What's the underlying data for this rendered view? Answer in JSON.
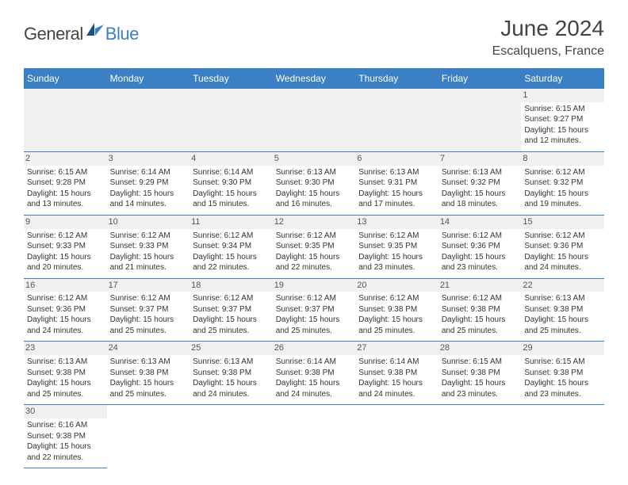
{
  "logo": {
    "text1": "General",
    "text2": "Blue"
  },
  "title": "June 2024",
  "location": "Escalquens, France",
  "days_of_week": [
    "Sunday",
    "Monday",
    "Tuesday",
    "Wednesday",
    "Thursday",
    "Friday",
    "Saturday"
  ],
  "colors": {
    "header_bg": "#3b7fc4",
    "header_text": "#ffffff",
    "body_text": "#333333",
    "day_num_bg": "#f0f0f0",
    "border": "#3b7fc4"
  },
  "weeks": [
    [
      null,
      null,
      null,
      null,
      null,
      null,
      {
        "n": "1",
        "sunrise": "Sunrise: 6:15 AM",
        "sunset": "Sunset: 9:27 PM",
        "daylight": "Daylight: 15 hours and 12 minutes."
      }
    ],
    [
      {
        "n": "2",
        "sunrise": "Sunrise: 6:15 AM",
        "sunset": "Sunset: 9:28 PM",
        "daylight": "Daylight: 15 hours and 13 minutes."
      },
      {
        "n": "3",
        "sunrise": "Sunrise: 6:14 AM",
        "sunset": "Sunset: 9:29 PM",
        "daylight": "Daylight: 15 hours and 14 minutes."
      },
      {
        "n": "4",
        "sunrise": "Sunrise: 6:14 AM",
        "sunset": "Sunset: 9:30 PM",
        "daylight": "Daylight: 15 hours and 15 minutes."
      },
      {
        "n": "5",
        "sunrise": "Sunrise: 6:13 AM",
        "sunset": "Sunset: 9:30 PM",
        "daylight": "Daylight: 15 hours and 16 minutes."
      },
      {
        "n": "6",
        "sunrise": "Sunrise: 6:13 AM",
        "sunset": "Sunset: 9:31 PM",
        "daylight": "Daylight: 15 hours and 17 minutes."
      },
      {
        "n": "7",
        "sunrise": "Sunrise: 6:13 AM",
        "sunset": "Sunset: 9:32 PM",
        "daylight": "Daylight: 15 hours and 18 minutes."
      },
      {
        "n": "8",
        "sunrise": "Sunrise: 6:12 AM",
        "sunset": "Sunset: 9:32 PM",
        "daylight": "Daylight: 15 hours and 19 minutes."
      }
    ],
    [
      {
        "n": "9",
        "sunrise": "Sunrise: 6:12 AM",
        "sunset": "Sunset: 9:33 PM",
        "daylight": "Daylight: 15 hours and 20 minutes."
      },
      {
        "n": "10",
        "sunrise": "Sunrise: 6:12 AM",
        "sunset": "Sunset: 9:33 PM",
        "daylight": "Daylight: 15 hours and 21 minutes."
      },
      {
        "n": "11",
        "sunrise": "Sunrise: 6:12 AM",
        "sunset": "Sunset: 9:34 PM",
        "daylight": "Daylight: 15 hours and 22 minutes."
      },
      {
        "n": "12",
        "sunrise": "Sunrise: 6:12 AM",
        "sunset": "Sunset: 9:35 PM",
        "daylight": "Daylight: 15 hours and 22 minutes."
      },
      {
        "n": "13",
        "sunrise": "Sunrise: 6:12 AM",
        "sunset": "Sunset: 9:35 PM",
        "daylight": "Daylight: 15 hours and 23 minutes."
      },
      {
        "n": "14",
        "sunrise": "Sunrise: 6:12 AM",
        "sunset": "Sunset: 9:36 PM",
        "daylight": "Daylight: 15 hours and 23 minutes."
      },
      {
        "n": "15",
        "sunrise": "Sunrise: 6:12 AM",
        "sunset": "Sunset: 9:36 PM",
        "daylight": "Daylight: 15 hours and 24 minutes."
      }
    ],
    [
      {
        "n": "16",
        "sunrise": "Sunrise: 6:12 AM",
        "sunset": "Sunset: 9:36 PM",
        "daylight": "Daylight: 15 hours and 24 minutes."
      },
      {
        "n": "17",
        "sunrise": "Sunrise: 6:12 AM",
        "sunset": "Sunset: 9:37 PM",
        "daylight": "Daylight: 15 hours and 25 minutes."
      },
      {
        "n": "18",
        "sunrise": "Sunrise: 6:12 AM",
        "sunset": "Sunset: 9:37 PM",
        "daylight": "Daylight: 15 hours and 25 minutes."
      },
      {
        "n": "19",
        "sunrise": "Sunrise: 6:12 AM",
        "sunset": "Sunset: 9:37 PM",
        "daylight": "Daylight: 15 hours and 25 minutes."
      },
      {
        "n": "20",
        "sunrise": "Sunrise: 6:12 AM",
        "sunset": "Sunset: 9:38 PM",
        "daylight": "Daylight: 15 hours and 25 minutes."
      },
      {
        "n": "21",
        "sunrise": "Sunrise: 6:12 AM",
        "sunset": "Sunset: 9:38 PM",
        "daylight": "Daylight: 15 hours and 25 minutes."
      },
      {
        "n": "22",
        "sunrise": "Sunrise: 6:13 AM",
        "sunset": "Sunset: 9:38 PM",
        "daylight": "Daylight: 15 hours and 25 minutes."
      }
    ],
    [
      {
        "n": "23",
        "sunrise": "Sunrise: 6:13 AM",
        "sunset": "Sunset: 9:38 PM",
        "daylight": "Daylight: 15 hours and 25 minutes."
      },
      {
        "n": "24",
        "sunrise": "Sunrise: 6:13 AM",
        "sunset": "Sunset: 9:38 PM",
        "daylight": "Daylight: 15 hours and 25 minutes."
      },
      {
        "n": "25",
        "sunrise": "Sunrise: 6:13 AM",
        "sunset": "Sunset: 9:38 PM",
        "daylight": "Daylight: 15 hours and 24 minutes."
      },
      {
        "n": "26",
        "sunrise": "Sunrise: 6:14 AM",
        "sunset": "Sunset: 9:38 PM",
        "daylight": "Daylight: 15 hours and 24 minutes."
      },
      {
        "n": "27",
        "sunrise": "Sunrise: 6:14 AM",
        "sunset": "Sunset: 9:38 PM",
        "daylight": "Daylight: 15 hours and 24 minutes."
      },
      {
        "n": "28",
        "sunrise": "Sunrise: 6:15 AM",
        "sunset": "Sunset: 9:38 PM",
        "daylight": "Daylight: 15 hours and 23 minutes."
      },
      {
        "n": "29",
        "sunrise": "Sunrise: 6:15 AM",
        "sunset": "Sunset: 9:38 PM",
        "daylight": "Daylight: 15 hours and 23 minutes."
      }
    ],
    [
      {
        "n": "30",
        "sunrise": "Sunrise: 6:16 AM",
        "sunset": "Sunset: 9:38 PM",
        "daylight": "Daylight: 15 hours and 22 minutes."
      },
      null,
      null,
      null,
      null,
      null,
      null
    ]
  ]
}
